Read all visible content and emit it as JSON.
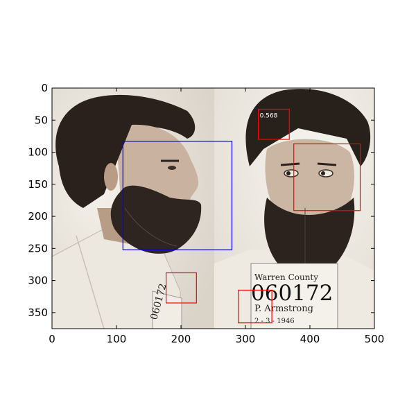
{
  "chart_data": {
    "type": "image-with-detection-boxes",
    "title": "",
    "xlabel": "",
    "ylabel": "",
    "xlim": [
      0,
      500
    ],
    "ylim": [
      375,
      0
    ],
    "x_ticks": [
      0,
      100,
      200,
      300,
      400,
      500
    ],
    "y_ticks": [
      0,
      50,
      100,
      150,
      200,
      250,
      300,
      350
    ],
    "grid": false,
    "boxes": [
      {
        "label": "",
        "color": "#0000ff",
        "x0": 110,
        "y0": 83,
        "x1": 279,
        "y1": 252
      },
      {
        "label": "0.568",
        "color": "#ff0000",
        "x0": 320,
        "y0": 33,
        "x1": 368,
        "y1": 80
      },
      {
        "label": "",
        "color": "#ff0000",
        "x0": 375,
        "y0": 87,
        "x1": 478,
        "y1": 191
      },
      {
        "label": "",
        "color": "#ff0000",
        "x0": 177,
        "y0": 288,
        "x1": 224,
        "y1": 335
      },
      {
        "label": "",
        "color": "#ff0000",
        "x0": 289,
        "y0": 315,
        "x1": 341,
        "y1": 366
      }
    ]
  },
  "photo": {
    "caption_line1": "Warren County",
    "caption_line2": "060172",
    "caption_line3": "P.   Armstrong",
    "caption_line4": "2  -  3  -  1946",
    "left_tag_text": "060172"
  }
}
